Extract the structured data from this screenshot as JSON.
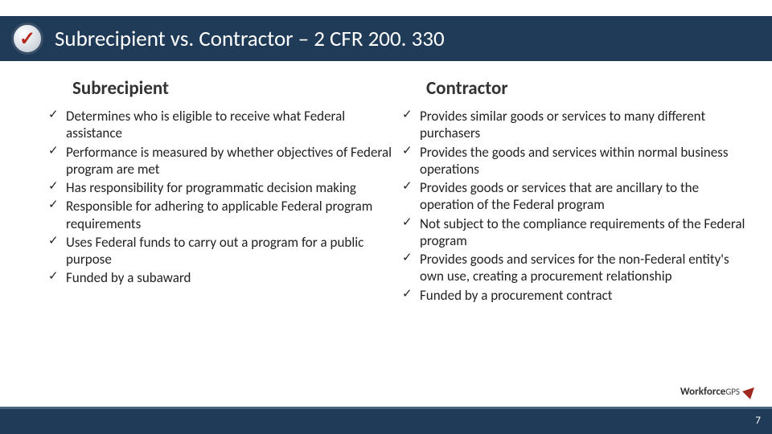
{
  "header": {
    "title": "Subrecipient vs. Contractor – 2 CFR 200. 330",
    "icon_name": "check-circle"
  },
  "columns": {
    "left": {
      "heading": "Subrecipient",
      "items": [
        "Determines who is eligible to receive what Federal assistance",
        "Performance is measured by whether objectives of Federal program are met",
        "Has responsibility for programmatic decision making",
        "Responsible for adhering to applicable Federal program requirements",
        "Uses Federal funds to carry out a program for a public purpose",
        "Funded by a subaward"
      ]
    },
    "right": {
      "heading": "Contractor",
      "items": [
        "Provides similar goods or services to many different purchasers",
        "Provides the goods and services within normal business operations",
        "Provides goods or services that are ancillary to the operation of the Federal program",
        "Not subject to the compliance requirements of the Federal program",
        "Provides goods and services for the non-Federal entity's own use, creating a procurement relationship",
        "Funded by a procurement contract"
      ]
    }
  },
  "footer": {
    "page_number": "7",
    "logo_main": "Workforce",
    "logo_sub": "GPS"
  },
  "styling": {
    "header_bg": "#1f3b57",
    "header_text_color": "#ffffff",
    "icon_check_color": "#b6281e",
    "body_text_color": "#222222",
    "heading_fontsize_pt": 23,
    "body_fontsize_pt": 17,
    "title_fontsize_pt": 27,
    "footer_bg": "#1f3b57",
    "footer_border": "#46657f",
    "background": "#ffffff",
    "bullet_glyph": "✓"
  }
}
